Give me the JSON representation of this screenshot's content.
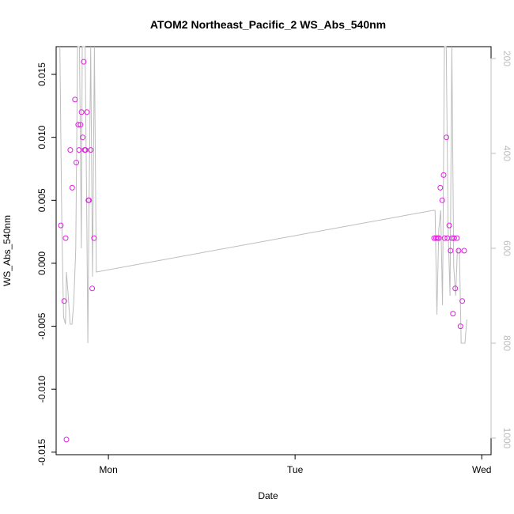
{
  "chart_data": {
    "type": "scatter",
    "title": "ATOM2 Northeast_Pacific_2 WS_Abs_540nm",
    "xlabel": "Date",
    "ylabel": "WS_Abs_540nm",
    "x_ticks": [
      "Mon",
      "Tue",
      "Wed"
    ],
    "x_tick_days": [
      1,
      2,
      3
    ],
    "xlim_days": [
      0.72,
      3.05
    ],
    "ylim": [
      -0.0152,
      0.0172
    ],
    "y_ticks": [
      -0.015,
      -0.01,
      -0.005,
      0.0,
      0.005,
      0.01,
      0.015
    ],
    "y_tick_labels": [
      "-0.015",
      "-0.010",
      "-0.005",
      "0.000",
      "0.005",
      "0.010",
      "0.015"
    ],
    "y2_ticks": [
      200,
      400,
      600,
      800,
      1000
    ],
    "y2lim": [
      1035,
      175
    ],
    "grid": false,
    "colors": {
      "points": "#e020e0",
      "line": "#bdbdbd",
      "axis": "#000000",
      "right_axis": "#bdbdbd"
    },
    "series": [
      {
        "kind": "points",
        "x": [
          0.745,
          0.763,
          0.771,
          0.775,
          0.796,
          0.806,
          0.821,
          0.828,
          0.838,
          0.843,
          0.851,
          0.856,
          0.862,
          0.868,
          0.873,
          0.877,
          0.885,
          0.893,
          0.896,
          0.905,
          0.913,
          0.923,
          2.745,
          2.755,
          2.763,
          2.771,
          2.778,
          2.788,
          2.796,
          2.801,
          2.811,
          2.816,
          2.826,
          2.833,
          2.841,
          2.846,
          2.852,
          2.858,
          2.867,
          2.876,
          2.886,
          2.896,
          2.906
        ],
        "y": [
          0.003,
          -0.003,
          0.002,
          -0.014,
          0.009,
          0.006,
          0.013,
          0.008,
          0.011,
          0.009,
          0.011,
          0.012,
          0.01,
          0.016,
          0.009,
          0.009,
          0.012,
          0.005,
          0.005,
          0.009,
          -0.002,
          0.002,
          0.002,
          0.002,
          0.002,
          0.002,
          0.006,
          0.005,
          0.007,
          0.002,
          0.01,
          0.002,
          0.003,
          0.001,
          0.002,
          -0.004,
          0.002,
          -0.002,
          0.002,
          0.001,
          -0.005,
          -0.003,
          0.001
        ]
      },
      {
        "kind": "line",
        "axis": "right",
        "x": [
          0.74,
          0.75,
          0.76,
          0.77,
          0.775,
          0.785,
          0.795,
          0.805,
          0.815,
          0.825,
          0.835,
          0.845,
          0.855,
          0.86,
          0.865,
          0.875,
          0.885,
          0.89,
          0.895,
          0.905,
          0.915,
          0.925,
          0.935,
          2.74,
          2.75,
          2.76,
          2.77,
          2.78,
          2.79,
          2.8,
          2.81,
          2.82,
          2.83,
          2.84,
          2.85,
          2.86,
          2.87,
          2.88,
          2.89,
          2.9,
          2.91,
          2.92
        ],
        "y": [
          100,
          540,
          745,
          760,
          650,
          700,
          760,
          760,
          710,
          600,
          100,
          70,
          600,
          150,
          100,
          80,
          560,
          800,
          560,
          150,
          660,
          100,
          650,
          520,
          520,
          740,
          560,
          520,
          720,
          100,
          110,
          560,
          700,
          110,
          640,
          700,
          600,
          600,
          800,
          800,
          800,
          750
        ]
      }
    ]
  }
}
